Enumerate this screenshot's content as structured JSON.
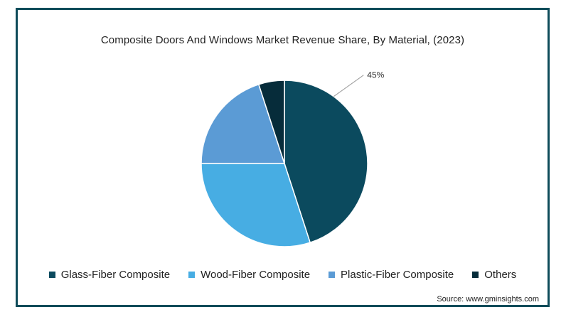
{
  "chart_data": {
    "type": "pie",
    "title": "Composite Doors And Windows Market Revenue Share, By Material,  (2023)",
    "slices": [
      {
        "name": "Glass-Fiber Composite",
        "value": 45,
        "color": "#0b4a5e",
        "label": "45%"
      },
      {
        "name": "Wood-Fiber Composite",
        "value": 30,
        "color": "#47ade3",
        "label": ""
      },
      {
        "name": "Plastic-Fiber Composite",
        "value": 20,
        "color": "#5b9bd5",
        "label": ""
      },
      {
        "name": "Others",
        "value": 5,
        "color": "#062c3a",
        "label": ""
      }
    ],
    "legend_position": "bottom",
    "source": "Source: www.gminsights.com"
  }
}
